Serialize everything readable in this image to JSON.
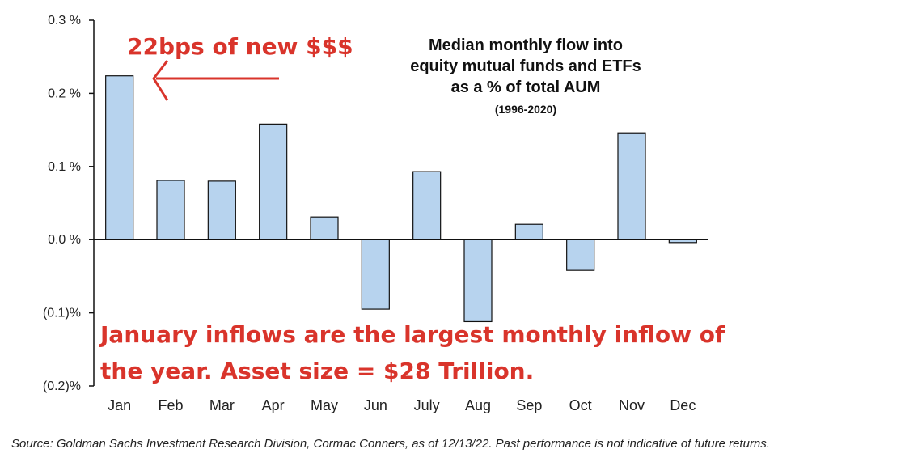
{
  "chart_data": {
    "type": "bar",
    "title_lines": [
      "Median monthly flow into",
      "equity mutual funds and ETFs",
      "as a % of total AUM"
    ],
    "subtitle": "(1996-2020)",
    "categories": [
      "Jan",
      "Feb",
      "Mar",
      "Apr",
      "May",
      "Jun",
      "July",
      "Aug",
      "Sep",
      "Oct",
      "Nov",
      "Dec"
    ],
    "values": [
      0.224,
      0.081,
      0.08,
      0.158,
      0.031,
      -0.095,
      0.093,
      -0.112,
      0.021,
      -0.042,
      0.146,
      -0.004
    ],
    "unit": "%",
    "ylim": [
      -0.2,
      0.3
    ],
    "yticks": [
      {
        "value": 0.3,
        "label": "0.3 %"
      },
      {
        "value": 0.2,
        "label": "0.2 %"
      },
      {
        "value": 0.1,
        "label": "0.1 %"
      },
      {
        "value": 0.0,
        "label": "0.0 %"
      },
      {
        "value": -0.1,
        "label": "(0.1)%"
      },
      {
        "value": -0.2,
        "label": "(0.2)%"
      }
    ],
    "grid": false,
    "bar_color": "#b7d3ee",
    "bar_stroke": "#111111",
    "annotations": {
      "arrow_label": "22bps of new $$$",
      "note_lines": [
        "January inflows are the largest monthly inflow of",
        "the year. Asset size = $28 Trillion."
      ],
      "color": "#d9342b"
    }
  },
  "source": "Source: Goldman Sachs Investment Research Division, Cormac Conners, as of 12/13/22. Past performance is not indicative of future returns."
}
